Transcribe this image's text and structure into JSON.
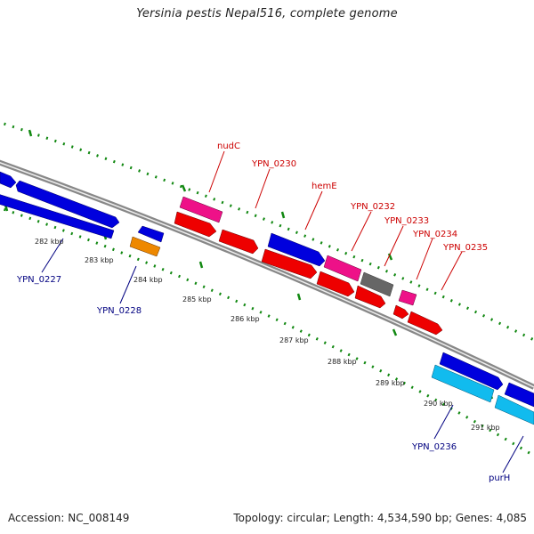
{
  "title": "Yersinia pestis Nepal516, complete genome",
  "footer": {
    "accession": "Accession: NC_008149",
    "topology": "Topology: circular; Length: 4,534,590 bp; Genes: 4,085"
  },
  "colors": {
    "blue_gene": "#0000dd",
    "red_gene": "#ee0000",
    "pink_gene": "#ee1188",
    "orange_gene": "#ee8800",
    "gray_gene": "#666666",
    "cyan_gene": "#11bbee",
    "backbone": "#888888",
    "dotted_track": "#118811",
    "red_label": "#cc0000",
    "blue_label": "#000080"
  },
  "ticks": [
    "282 kbp",
    "283 kbp",
    "284 kbp",
    "285 kbp",
    "286 kbp",
    "287 kbp",
    "288 kbp",
    "289 kbp",
    "290 kbp",
    "291 kbp"
  ],
  "labels": {
    "nudC": "nudC",
    "ypn0230": "YPN_0230",
    "hemE": "hemE",
    "ypn0232": "YPN_0232",
    "ypn0233": "YPN_0233",
    "ypn0234": "YPN_0234",
    "ypn0235": "YPN_0235",
    "ypn0227": "YPN_0227",
    "ypn0228": "YPN_0228",
    "ypn0236": "YPN_0236",
    "purH": "purH"
  }
}
